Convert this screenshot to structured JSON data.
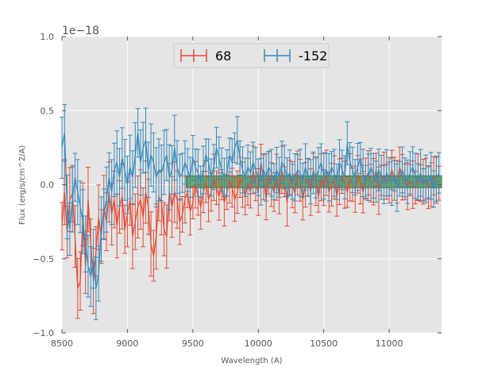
{
  "chart_data": {
    "type": "line",
    "title": "",
    "xlabel": "Wavelength (A)",
    "ylabel": "Flux (erg/s/cm^2/A)",
    "y_offset_label": "1e−18",
    "xlim": [
      8500,
      11400
    ],
    "ylim": [
      -1.0,
      1.0
    ],
    "x_ticks": [
      8500,
      9000,
      9500,
      10000,
      10500,
      11000
    ],
    "x_tick_labels": [
      "8500",
      "9000",
      "9500",
      "10000",
      "10500",
      "11000"
    ],
    "y_ticks": [
      -1.0,
      -0.5,
      0.0,
      0.5,
      1.0
    ],
    "y_tick_labels": [
      "−1.0",
      "−0.5",
      "0.0",
      "0.5",
      "1.0"
    ],
    "grid": true,
    "legend_position": "top-center",
    "band": {
      "x_start": 9450,
      "x_end": 11400,
      "y_low": -0.02,
      "y_high": 0.06,
      "color": "#3a9a3a"
    },
    "series": [
      {
        "name": "68",
        "color": "#e24a33",
        "x_start": 8500,
        "x_step": 20,
        "values": [
          -0.28,
          -0.05,
          -0.32,
          -0.1,
          -0.06,
          -0.35,
          -0.7,
          -0.65,
          -0.2,
          -0.55,
          -0.1,
          -0.4,
          -0.65,
          -0.45,
          -0.22,
          -0.35,
          -0.15,
          -0.25,
          -0.05,
          -0.2,
          -0.1,
          -0.28,
          -0.15,
          -0.08,
          -0.3,
          -0.2,
          -0.1,
          -0.35,
          -0.25,
          -0.15,
          -0.1,
          -0.22,
          -0.05,
          -0.15,
          -0.4,
          -0.48,
          -0.35,
          -0.08,
          -0.12,
          -0.3,
          -0.35,
          -0.05,
          -0.15,
          -0.05,
          -0.1,
          -0.25,
          -0.2,
          -0.1,
          -0.05,
          -0.18,
          -0.12,
          0.0,
          -0.08,
          -0.15,
          -0.05,
          0.02,
          -0.1,
          -0.05,
          0.05,
          -0.02,
          -0.08,
          0.0,
          -0.12,
          -0.05,
          0.03,
          -0.02,
          -0.1,
          -0.05,
          0.05,
          0.0,
          -0.08,
          0.02,
          -0.05,
          0.1,
          0.0,
          -0.05,
          0.15,
          0.05,
          -0.1,
          0.08,
          0.0,
          -0.05,
          0.05,
          -0.08,
          0.1,
          0.02,
          -0.12,
          0.05,
          0.0,
          -0.06,
          0.08,
          0.03,
          -0.1,
          0.0,
          0.05,
          -0.05,
          0.1,
          0.02,
          -0.08,
          0.05,
          -0.02,
          0.08,
          -0.05,
          0.0,
          0.05,
          -0.08,
          0.02,
          0.06,
          0.0,
          -0.05,
          0.05,
          0.0,
          -0.03,
          0.07,
          0.02,
          -0.05,
          0.04,
          0.08,
          0.01,
          0.02,
          0.1,
          -0.04,
          0.03,
          0.06,
          0.02,
          0.03,
          0.1,
          0.04,
          0.02,
          0.12,
          0.05,
          0.02,
          -0.01,
          0.03,
          0.0,
          -0.02,
          0.05,
          0.01,
          0.02,
          0.04,
          -0.02,
          0.0,
          0.06,
          0.03,
          0.01
        ]
      },
      {
        "name": "-152",
        "color": "#348abd",
        "x_start": 8500,
        "x_step": 20,
        "values": [
          0.25,
          0.35,
          -0.15,
          -0.3,
          -0.1,
          0.05,
          -0.05,
          -0.15,
          -0.25,
          -0.4,
          -0.55,
          -0.62,
          -0.5,
          -0.7,
          -0.6,
          -0.3,
          -0.2,
          -0.1,
          0.05,
          -0.05,
          0.1,
          0.15,
          0.05,
          0.18,
          0.1,
          0.0,
          0.12,
          0.05,
          0.2,
          0.35,
          0.15,
          0.25,
          0.3,
          0.1,
          0.2,
          0.15,
          0.05,
          0.1,
          0.08,
          0.15,
          0.2,
          0.05,
          0.1,
          0.25,
          0.12,
          0.05,
          0.08,
          0.15,
          0.1,
          0.05,
          0.18,
          0.12,
          0.08,
          0.02,
          0.1,
          0.2,
          0.15,
          0.05,
          0.12,
          0.25,
          0.18,
          0.1,
          0.05,
          0.08,
          0.2,
          0.15,
          0.25,
          0.3,
          0.18,
          0.1,
          0.05,
          0.12,
          0.08,
          0.15,
          0.1,
          0.05,
          0.02,
          0.1,
          0.05,
          0.12,
          0.08,
          0.02,
          0.1,
          0.05,
          0.15,
          0.12,
          0.05,
          0.08,
          0.02,
          0.05,
          0.1,
          0.08,
          0.03,
          0.12,
          0.05,
          0.02,
          0.08,
          0.05,
          0.1,
          0.15,
          0.06,
          0.1,
          0.05,
          0.12,
          0.08,
          0.02,
          0.15,
          0.1,
          0.05,
          0.28,
          0.15,
          0.1,
          0.05,
          0.12,
          0.18,
          0.08,
          0.02,
          0.05,
          0.12,
          0.06,
          0.02,
          0.1,
          0.05,
          0.0,
          0.08,
          0.04,
          0.02,
          0.06,
          -0.02,
          0.04,
          0.1,
          0.05,
          0.02,
          0.08,
          0.12,
          0.06,
          0.02,
          0.08,
          0.0,
          0.04,
          0.02,
          0.06,
          -0.03,
          0.04,
          0.08
        ]
      }
    ]
  }
}
